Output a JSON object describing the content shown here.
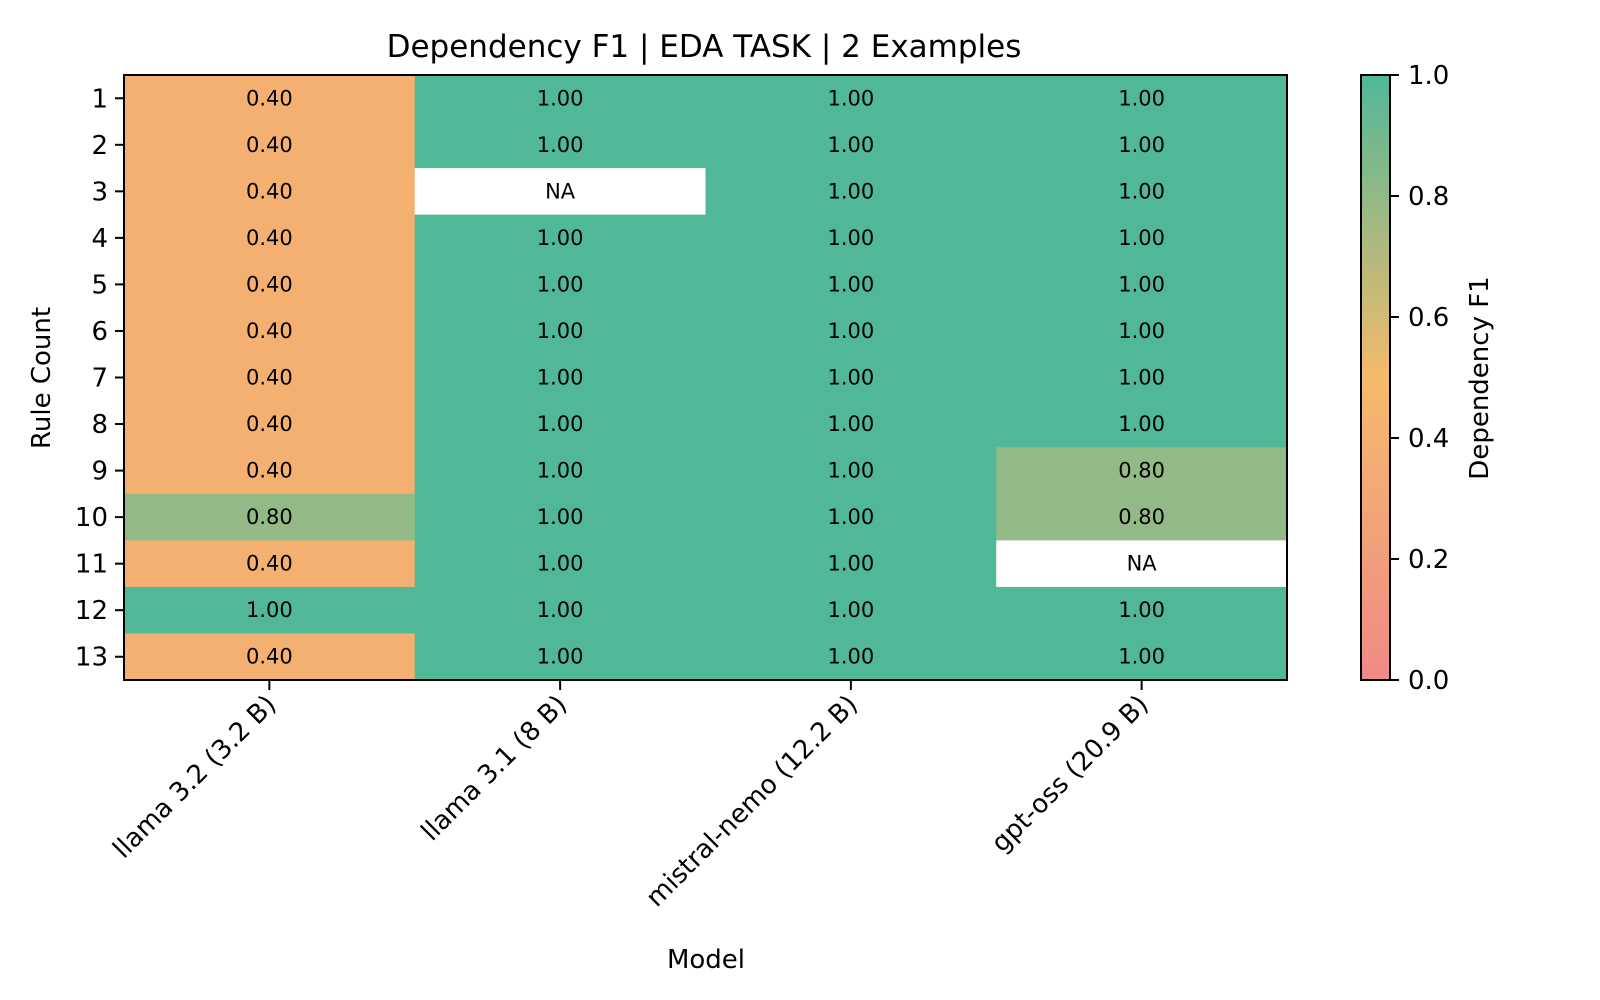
{
  "chart_data": {
    "type": "heatmap",
    "title": "Dependency F1 | EDA TASK | 2 Examples",
    "xlabel": "Model",
    "ylabel": "Rule Count",
    "x_categories": [
      "llama 3.2 (3.2 B)",
      "llama 3.1 (8 B)",
      "mistral-nemo (12.2 B)",
      "gpt-oss (20.9 B)"
    ],
    "y_categories": [
      "1",
      "2",
      "3",
      "4",
      "5",
      "6",
      "7",
      "8",
      "9",
      "10",
      "11",
      "12",
      "13"
    ],
    "values": [
      [
        0.4,
        1.0,
        1.0,
        1.0
      ],
      [
        0.4,
        1.0,
        1.0,
        1.0
      ],
      [
        0.4,
        null,
        1.0,
        1.0
      ],
      [
        0.4,
        1.0,
        1.0,
        1.0
      ],
      [
        0.4,
        1.0,
        1.0,
        1.0
      ],
      [
        0.4,
        1.0,
        1.0,
        1.0
      ],
      [
        0.4,
        1.0,
        1.0,
        1.0
      ],
      [
        0.4,
        1.0,
        1.0,
        1.0
      ],
      [
        0.4,
        1.0,
        1.0,
        0.8
      ],
      [
        0.8,
        1.0,
        1.0,
        0.8
      ],
      [
        0.4,
        1.0,
        1.0,
        null
      ],
      [
        1.0,
        1.0,
        1.0,
        1.0
      ],
      [
        0.4,
        1.0,
        1.0,
        1.0
      ]
    ],
    "missing_label": "NA",
    "value_format": "0.00",
    "colorbar": {
      "label": "Dependency F1",
      "range": [
        0.0,
        1.0
      ],
      "ticks": [
        "0.0",
        "0.2",
        "0.4",
        "0.6",
        "0.8",
        "1.0"
      ],
      "colors": [
        "#ef8a87",
        "#f5ba6b",
        "#50b898"
      ]
    },
    "grid": false
  }
}
